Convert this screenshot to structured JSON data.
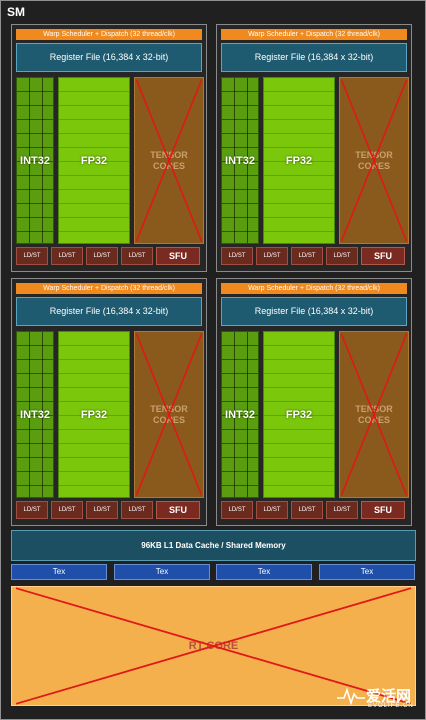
{
  "sm": {
    "title": "SM",
    "processing_blocks": [
      {
        "warp_scheduler": "Warp Scheduler + Dispatch (32 thread/clk)",
        "register_file": "Register File (16,384 x 32-bit)",
        "int_unit": "INT32",
        "fp_unit": "FP32",
        "tensor_line1": "TENSOR",
        "tensor_line2": "CORES",
        "ldst": [
          "LD/ST",
          "LD/ST",
          "LD/ST",
          "LD/ST"
        ],
        "sfu": "SFU"
      },
      {
        "warp_scheduler": "Warp Scheduler + Dispatch (32 thread/clk)",
        "register_file": "Register File (16,384 x 32-bit)",
        "int_unit": "INT32",
        "fp_unit": "FP32",
        "tensor_line1": "TENSOR",
        "tensor_line2": "CORES",
        "ldst": [
          "LD/ST",
          "LD/ST",
          "LD/ST",
          "LD/ST"
        ],
        "sfu": "SFU"
      },
      {
        "warp_scheduler": "Warp Scheduler + Dispatch (32 thread/clk)",
        "register_file": "Register File (16,384 x 32-bit)",
        "int_unit": "INT32",
        "fp_unit": "FP32",
        "tensor_line1": "TENSOR",
        "tensor_line2": "CORES",
        "ldst": [
          "LD/ST",
          "LD/ST",
          "LD/ST",
          "LD/ST"
        ],
        "sfu": "SFU"
      },
      {
        "warp_scheduler": "Warp Scheduler + Dispatch (32 thread/clk)",
        "register_file": "Register File (16,384 x 32-bit)",
        "int_unit": "INT32",
        "fp_unit": "FP32",
        "tensor_line1": "TENSOR",
        "tensor_line2": "CORES",
        "ldst": [
          "LD/ST",
          "LD/ST",
          "LD/ST",
          "LD/ST"
        ],
        "sfu": "SFU"
      }
    ],
    "l1_cache": "96KB L1 Data Cache / Shared Memory",
    "tex_units": [
      "Tex",
      "Tex",
      "Tex",
      "Tex"
    ],
    "rt_core": "RT CORE"
  },
  "watermark": {
    "text": "爱活网",
    "subtext": "EVOLIFE.CN"
  },
  "colors": {
    "background": "#202020",
    "warp_scheduler": "#f08a1e",
    "register_file": "#1e5a70",
    "int32": "#5a9e10",
    "fp32": "#7ac70c",
    "tensor_cores": "#8a5a1c",
    "ldst": "#6a2a1e",
    "sfu": "#7a2a20",
    "l1_cache": "#1d4f62",
    "tex": "#1f4fa8",
    "rt_core": "#f4b04c",
    "cross_mark": "#e01818"
  }
}
